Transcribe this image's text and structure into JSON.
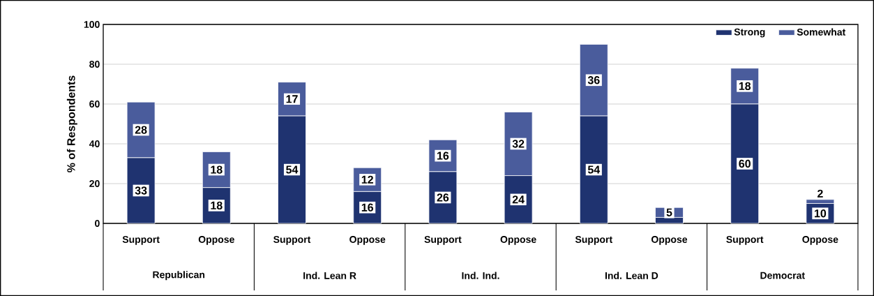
{
  "chart_data": {
    "type": "bar",
    "stacked": true,
    "ylabel": "% of Respondents",
    "categories": [
      "Support",
      "Oppose",
      "Support",
      "Oppose",
      "Support",
      "Oppose",
      "Support",
      "Oppose",
      "Support",
      "Oppose"
    ],
    "annotations": [
      "Republican",
      "Ind. Lean R",
      "Ind. Ind.",
      "Ind. Lean D",
      "Democrat"
    ],
    "series": [
      {
        "name": "Strong",
        "color": "#1f3370",
        "values": [
          33,
          18,
          54,
          16,
          26,
          24,
          54,
          3,
          60,
          10
        ],
        "value_labels": [
          "33",
          "18",
          "54",
          "16",
          "26",
          "24",
          "54",
          null,
          "60",
          "10"
        ]
      },
      {
        "name": "Somewhat",
        "color": "#4a5c9c",
        "values": [
          28,
          18,
          17,
          12,
          16,
          32,
          36,
          5,
          18,
          2
        ],
        "value_labels": [
          "28",
          "18",
          "17",
          "12",
          "16",
          "32",
          "36",
          "5",
          "18",
          "2"
        ]
      }
    ],
    "ylim": [
      0,
      100
    ],
    "yticks": [
      0,
      20,
      40,
      60,
      80,
      100
    ],
    "grid": "y",
    "legend": "top right"
  }
}
